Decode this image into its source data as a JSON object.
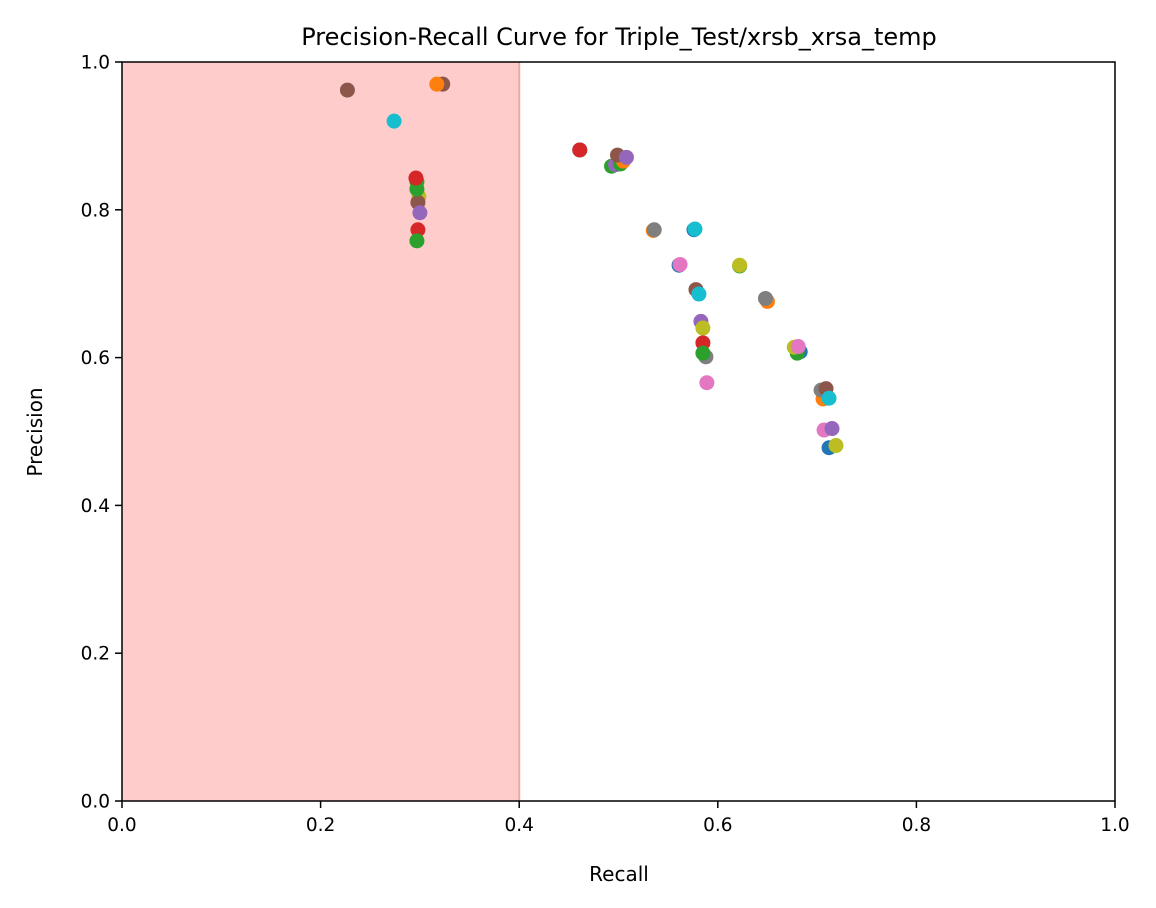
{
  "chart_data": {
    "type": "scatter",
    "title": "Precision-Recall Curve for Triple_Test/xrsb_xrsa_temp",
    "xlabel": "Recall",
    "ylabel": "Precision",
    "xlim": [
      0.0,
      1.0
    ],
    "ylim": [
      0.0,
      1.0
    ],
    "xticks": [
      "0.0",
      "0.2",
      "0.4",
      "0.6",
      "0.8",
      "1.0"
    ],
    "yticks": [
      "0.0",
      "0.2",
      "0.4",
      "0.6",
      "0.8",
      "1.0"
    ],
    "shaded_region": {
      "x_from": 0.0,
      "x_to": 0.4,
      "color": "#ffcccc"
    },
    "grid": false,
    "points": [
      {
        "x": 0.227,
        "y": 0.962,
        "color": "#8c564b"
      },
      {
        "x": 0.323,
        "y": 0.97,
        "color": "#8c564b"
      },
      {
        "x": 0.317,
        "y": 0.97,
        "color": "#ff7f0e"
      },
      {
        "x": 0.274,
        "y": 0.92,
        "color": "#17becf"
      },
      {
        "x": 0.297,
        "y": 0.838,
        "color": "#2ca02c"
      },
      {
        "x": 0.299,
        "y": 0.818,
        "color": "#bcbd22"
      },
      {
        "x": 0.298,
        "y": 0.81,
        "color": "#8c564b"
      },
      {
        "x": 0.297,
        "y": 0.828,
        "color": "#2ca02c"
      },
      {
        "x": 0.296,
        "y": 0.843,
        "color": "#d62728"
      },
      {
        "x": 0.3,
        "y": 0.796,
        "color": "#9467bd"
      },
      {
        "x": 0.298,
        "y": 0.773,
        "color": "#d62728"
      },
      {
        "x": 0.297,
        "y": 0.758,
        "color": "#2ca02c"
      },
      {
        "x": 0.461,
        "y": 0.881,
        "color": "#1f77b4"
      },
      {
        "x": 0.461,
        "y": 0.881,
        "color": "#d62728"
      },
      {
        "x": 0.493,
        "y": 0.859,
        "color": "#2ca02c"
      },
      {
        "x": 0.497,
        "y": 0.861,
        "color": "#9467bd"
      },
      {
        "x": 0.502,
        "y": 0.862,
        "color": "#2ca02c"
      },
      {
        "x": 0.505,
        "y": 0.866,
        "color": "#ff7f0e"
      },
      {
        "x": 0.499,
        "y": 0.874,
        "color": "#8c564b"
      },
      {
        "x": 0.508,
        "y": 0.871,
        "color": "#9467bd"
      },
      {
        "x": 0.535,
        "y": 0.772,
        "color": "#ff7f0e"
      },
      {
        "x": 0.536,
        "y": 0.773,
        "color": "#7f7f7f"
      },
      {
        "x": 0.576,
        "y": 0.773,
        "color": "#1f77b4"
      },
      {
        "x": 0.577,
        "y": 0.774,
        "color": "#17becf"
      },
      {
        "x": 0.561,
        "y": 0.725,
        "color": "#1f77b4"
      },
      {
        "x": 0.562,
        "y": 0.726,
        "color": "#e377c2"
      },
      {
        "x": 0.622,
        "y": 0.724,
        "color": "#2ca02c"
      },
      {
        "x": 0.622,
        "y": 0.725,
        "color": "#bcbd22"
      },
      {
        "x": 0.578,
        "y": 0.692,
        "color": "#8c564b"
      },
      {
        "x": 0.581,
        "y": 0.686,
        "color": "#17becf"
      },
      {
        "x": 0.65,
        "y": 0.676,
        "color": "#ff7f0e"
      },
      {
        "x": 0.648,
        "y": 0.68,
        "color": "#7f7f7f"
      },
      {
        "x": 0.583,
        "y": 0.649,
        "color": "#9467bd"
      },
      {
        "x": 0.585,
        "y": 0.64,
        "color": "#bcbd22"
      },
      {
        "x": 0.585,
        "y": 0.62,
        "color": "#d62728"
      },
      {
        "x": 0.588,
        "y": 0.601,
        "color": "#7f7f7f"
      },
      {
        "x": 0.585,
        "y": 0.606,
        "color": "#2ca02c"
      },
      {
        "x": 0.589,
        "y": 0.566,
        "color": "#e377c2"
      },
      {
        "x": 0.683,
        "y": 0.608,
        "color": "#1f77b4"
      },
      {
        "x": 0.68,
        "y": 0.606,
        "color": "#2ca02c"
      },
      {
        "x": 0.677,
        "y": 0.614,
        "color": "#bcbd22"
      },
      {
        "x": 0.681,
        "y": 0.615,
        "color": "#e377c2"
      },
      {
        "x": 0.706,
        "y": 0.544,
        "color": "#ff7f0e"
      },
      {
        "x": 0.704,
        "y": 0.556,
        "color": "#7f7f7f"
      },
      {
        "x": 0.709,
        "y": 0.558,
        "color": "#8c564b"
      },
      {
        "x": 0.712,
        "y": 0.545,
        "color": "#17becf"
      },
      {
        "x": 0.707,
        "y": 0.502,
        "color": "#e377c2"
      },
      {
        "x": 0.715,
        "y": 0.504,
        "color": "#9467bd"
      },
      {
        "x": 0.712,
        "y": 0.478,
        "color": "#1f77b4"
      },
      {
        "x": 0.719,
        "y": 0.481,
        "color": "#bcbd22"
      }
    ]
  }
}
